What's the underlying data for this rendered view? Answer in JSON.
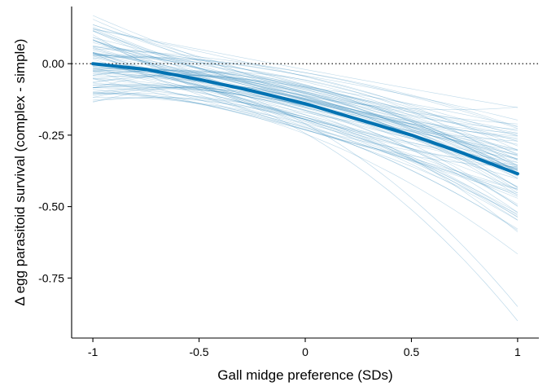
{
  "chart_data": {
    "type": "line",
    "title": "",
    "xlabel": "Gall midge preference (SDs)",
    "ylabel": "Δ egg parasitoid survival (complex - simple)",
    "xlim": [
      -1.1,
      1.1
    ],
    "ylim": [
      -0.96,
      0.2
    ],
    "x_ticks": [
      -1,
      -0.5,
      0,
      0.5,
      1
    ],
    "x_tick_labels": [
      "-1",
      "-0.5",
      "0",
      "0.5",
      "1"
    ],
    "y_ticks": [
      0.0,
      -0.25,
      -0.5,
      -0.75
    ],
    "y_tick_labels": [
      "0.00",
      "-0.25",
      "-0.50",
      "-0.75"
    ],
    "reference_line": {
      "y": 0,
      "style": "dotted",
      "color": "#000000"
    },
    "grid": false,
    "colors": {
      "mean_line": "#0072b2",
      "posterior_lines": "#2b83ba"
    },
    "series": [
      {
        "role": "mean",
        "x": [
          -1,
          -0.75,
          -0.5,
          -0.25,
          0,
          0.25,
          0.5,
          0.75,
          1
        ],
        "y": [
          0.0,
          -0.02,
          -0.055,
          -0.095,
          -0.14,
          -0.195,
          -0.25,
          -0.315,
          -0.385
        ]
      }
    ],
    "posterior_draws": {
      "count": 90,
      "x_range": [
        -1,
        1
      ]
    }
  }
}
